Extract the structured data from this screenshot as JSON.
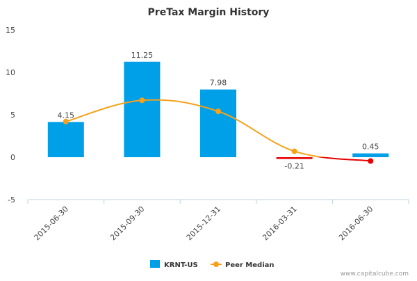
{
  "chart_data": {
    "type": "bar",
    "title": "PreTax Margin History",
    "categories": [
      "2015-06-30",
      "2015-09-30",
      "2015-12-31",
      "2016-03-31",
      "2016-06-30"
    ],
    "series": [
      {
        "name": "KRNT-US",
        "type": "bar",
        "values": [
          4.15,
          11.25,
          7.98,
          -0.21,
          0.45
        ],
        "labels": [
          "4.15",
          "11.25",
          "7.98",
          "-0.21",
          "0.45"
        ],
        "color": "#00a0e9",
        "negative_color": "#e60000"
      },
      {
        "name": "Peer Median",
        "type": "line",
        "values": [
          4.2,
          6.7,
          5.4,
          0.7,
          -0.45
        ],
        "color": "#f5a11a",
        "negative_color": "#e60000"
      }
    ],
    "ylim": [
      -5,
      15
    ],
    "yticks": [
      "15",
      "10",
      "5",
      "0",
      "-5"
    ],
    "ytick_values": [
      15,
      10,
      5,
      0,
      -5
    ],
    "grid": false,
    "legend_position": "bottom-center"
  },
  "watermark": "www.capitalcube.com"
}
